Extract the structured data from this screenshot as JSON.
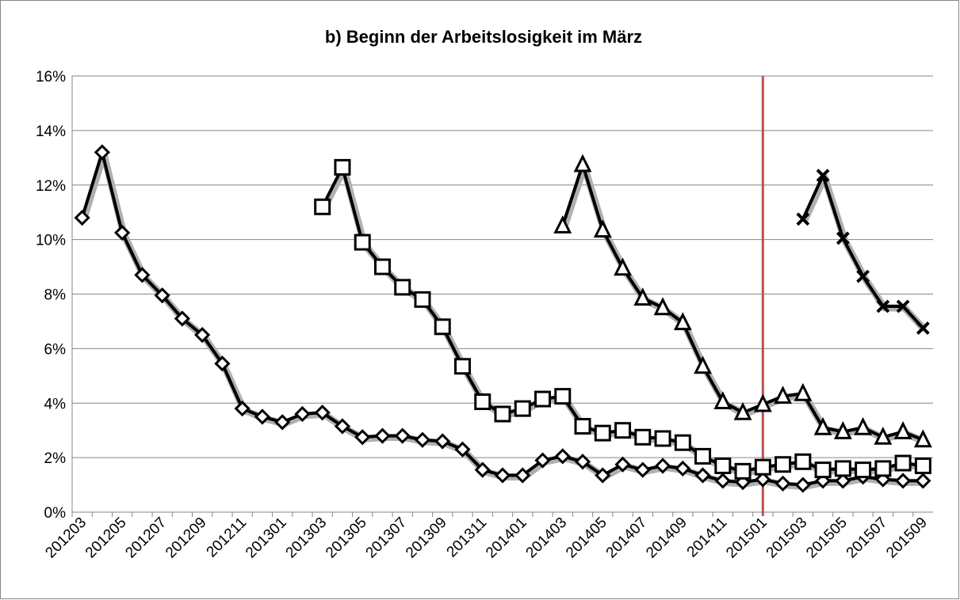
{
  "chart_data": {
    "type": "line",
    "title": "b) Beginn der Arbeitslosigkeit im März",
    "categories": [
      "201203",
      null,
      "201205",
      null,
      "201207",
      null,
      "201209",
      null,
      "201211",
      null,
      "201301",
      null,
      "201303",
      null,
      "201305",
      null,
      "201307",
      null,
      "201309",
      null,
      "201311",
      null,
      "201401",
      null,
      "201403",
      null,
      "201405",
      null,
      "201407",
      null,
      "201409",
      null,
      "201411",
      null,
      "201501",
      null,
      "201503",
      null,
      "201505",
      null,
      "201507",
      null,
      "201509"
    ],
    "series": [
      {
        "marker": "diamond",
        "color": "#000000",
        "values": [
          10.8,
          13.2,
          10.25,
          8.7,
          7.95,
          7.1,
          6.5,
          5.45,
          3.8,
          3.5,
          3.3,
          3.6,
          3.65,
          3.15,
          2.75,
          2.8,
          2.8,
          2.65,
          2.6,
          2.3,
          1.55,
          1.35,
          1.35,
          1.9,
          2.05,
          1.85,
          1.35,
          1.75,
          1.55,
          1.7,
          1.6,
          1.35,
          1.15,
          1.1,
          1.2,
          1.05,
          1.0,
          1.15,
          1.15,
          1.3,
          1.2,
          1.15,
          1.15
        ]
      },
      {
        "marker": "square",
        "color": "#000000",
        "values": [
          null,
          null,
          null,
          null,
          null,
          null,
          null,
          null,
          null,
          null,
          null,
          null,
          11.2,
          12.65,
          9.9,
          9.0,
          8.25,
          7.8,
          6.8,
          5.35,
          4.05,
          3.6,
          3.8,
          4.15,
          4.25,
          3.15,
          2.9,
          3.0,
          2.75,
          2.7,
          2.55,
          2.05,
          1.7,
          1.5,
          1.65,
          1.75,
          1.85,
          1.55,
          1.6,
          1.55,
          1.6,
          1.8,
          1.7
        ]
      },
      {
        "marker": "triangle",
        "color": "#000000",
        "values": [
          null,
          null,
          null,
          null,
          null,
          null,
          null,
          null,
          null,
          null,
          null,
          null,
          null,
          null,
          null,
          null,
          null,
          null,
          null,
          null,
          null,
          null,
          null,
          null,
          10.5,
          12.75,
          10.35,
          8.95,
          7.85,
          7.5,
          6.95,
          5.35,
          4.05,
          3.65,
          3.95,
          4.25,
          4.35,
          3.1,
          2.95,
          3.1,
          2.75,
          2.95,
          2.65
        ]
      },
      {
        "marker": "cross",
        "color": "#000000",
        "values": [
          null,
          null,
          null,
          null,
          null,
          null,
          null,
          null,
          null,
          null,
          null,
          null,
          null,
          null,
          null,
          null,
          null,
          null,
          null,
          null,
          null,
          null,
          null,
          null,
          null,
          null,
          null,
          null,
          null,
          null,
          null,
          null,
          null,
          null,
          null,
          null,
          10.75,
          12.35,
          10.05,
          8.65,
          7.55,
          7.55,
          6.75
        ]
      }
    ],
    "ylim": [
      0,
      16
    ],
    "yticks": [
      {
        "value": 0,
        "label": "0%"
      },
      {
        "value": 2,
        "label": "2%"
      },
      {
        "value": 4,
        "label": "4%"
      },
      {
        "value": 6,
        "label": "6%"
      },
      {
        "value": 8,
        "label": "8%"
      },
      {
        "value": 10,
        "label": "10%"
      },
      {
        "value": 12,
        "label": "12%"
      },
      {
        "value": 14,
        "label": "14%"
      },
      {
        "value": 16,
        "label": "16%"
      }
    ],
    "grid": true,
    "reference_line": {
      "category": "201501",
      "color": "#c0504d"
    }
  }
}
